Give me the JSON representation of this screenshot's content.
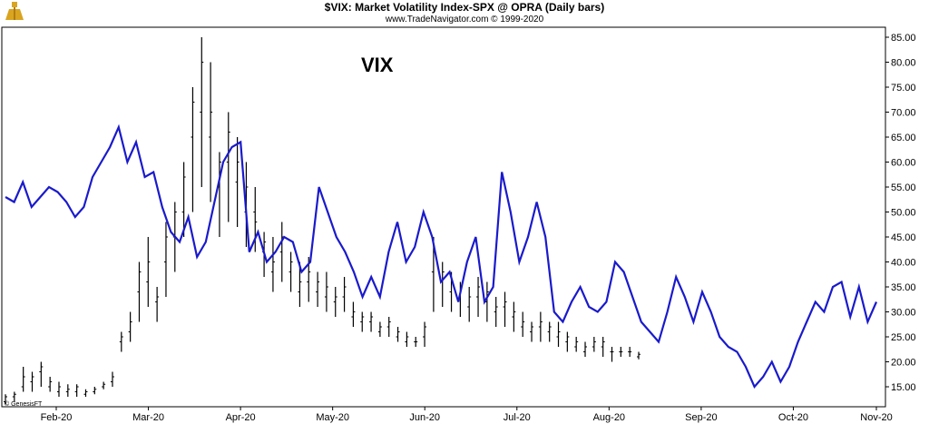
{
  "header": {
    "title": "$VIX:  Market Volatility Index-SPX @ OPRA  (Daily bars)",
    "subtitle": "www.TradeNavigator.com © 1999-2020"
  },
  "annotation": "VIX",
  "watermark": "© GenesisFT",
  "colors": {
    "line": "#1a1acc",
    "bars": "#000000",
    "axis": "#000000",
    "logo": "#d9a420"
  },
  "chart_data": {
    "type": "line",
    "title": "$VIX:  Market Volatility Index-SPX @ OPRA  (Daily bars)",
    "y_ticks": [
      "15.00",
      "20.00",
      "25.00",
      "30.00",
      "35.00",
      "40.00",
      "45.00",
      "50.00",
      "55.00",
      "60.00",
      "65.00",
      "70.00",
      "75.00",
      "80.00",
      "85.00"
    ],
    "x_ticks": [
      "Feb-20",
      "Mar-20",
      "Apr-20",
      "May-20",
      "Jun-20",
      "Jul-20",
      "Aug-20",
      "Sep-20",
      "Oct-20",
      "Nov-20"
    ],
    "ylim": [
      11,
      87
    ],
    "xlim": [
      0,
      100
    ],
    "grid": false,
    "series": [
      {
        "type": "line",
        "x": [
          0,
          1,
          2,
          3,
          4,
          5,
          6,
          7,
          8,
          9,
          10,
          11,
          12,
          13,
          14,
          15,
          16,
          17,
          18,
          19,
          20,
          21,
          22,
          23,
          24,
          25,
          26,
          27,
          28,
          29,
          30,
          31,
          32,
          33,
          34,
          35,
          36,
          37,
          38,
          39,
          40,
          41,
          42,
          43,
          44,
          45,
          46,
          47,
          48,
          49,
          50,
          51,
          52,
          53,
          54,
          55,
          56,
          57,
          58,
          59,
          60,
          61,
          62,
          63,
          64,
          65,
          66,
          67,
          68,
          69,
          70,
          71,
          72,
          73,
          74,
          75,
          76,
          77,
          78,
          79,
          80,
          81,
          82,
          83,
          84,
          85,
          86,
          87,
          88,
          89,
          90,
          91,
          92,
          93,
          94,
          95,
          96,
          97,
          98,
          99,
          100
        ],
        "y": [
          53,
          52,
          56,
          51,
          53,
          55,
          54,
          52,
          49,
          51,
          57,
          60,
          63,
          67,
          60,
          64,
          57,
          58,
          51,
          46,
          44,
          49,
          41,
          44,
          52,
          60,
          63,
          64,
          42,
          46,
          40,
          42,
          45,
          44,
          38,
          40,
          55,
          50,
          45,
          42,
          38,
          33,
          37,
          33,
          42,
          48,
          40,
          43,
          50,
          45,
          36,
          38,
          32,
          40,
          45,
          32,
          35,
          58,
          50,
          40,
          45,
          52,
          45,
          30,
          28,
          32,
          35,
          31,
          30,
          32,
          40,
          38,
          33,
          28,
          26,
          24,
          30,
          37,
          33,
          28,
          34,
          30,
          25,
          23,
          22,
          19,
          15,
          17,
          20,
          16,
          19,
          24,
          28,
          32,
          30,
          35,
          36,
          29,
          35,
          28,
          32
        ],
        "ydata_ref": "blue series shown without separate y axis"
      },
      {
        "type": "ohlc",
        "x": [
          0,
          1,
          2,
          3,
          4,
          5,
          6,
          7,
          8,
          9,
          10,
          11,
          12,
          13,
          14,
          15,
          16,
          17,
          18,
          19,
          20,
          21,
          22,
          23,
          24,
          25,
          26,
          27,
          28,
          29,
          30,
          31,
          32,
          33,
          34,
          35,
          36,
          37,
          38,
          39,
          40,
          41,
          42,
          43,
          44,
          45,
          46,
          47,
          48,
          49,
          50,
          51,
          52,
          53,
          54,
          55,
          56,
          57,
          58,
          59,
          60,
          61,
          62,
          63,
          64,
          65,
          66,
          67,
          68,
          69,
          70,
          71
        ],
        "high": [
          13.5,
          14,
          19,
          18,
          20,
          17,
          16,
          15.5,
          15.5,
          14.5,
          15,
          16,
          18,
          26,
          30,
          40,
          45,
          35,
          48,
          52,
          60,
          75,
          85,
          80,
          62,
          70,
          65,
          60,
          55,
          46,
          45,
          48,
          42,
          40,
          41,
          38,
          38,
          35,
          37,
          32,
          30,
          30,
          28,
          29,
          27,
          26,
          25,
          28,
          45,
          40,
          38,
          36,
          35,
          37,
          36,
          33,
          34,
          32,
          30,
          28,
          30,
          28,
          28,
          26,
          25,
          24,
          25,
          25,
          23,
          23,
          23,
          22
        ],
        "low": [
          11.5,
          12,
          14,
          14,
          15,
          14,
          13,
          13,
          13,
          13,
          13.5,
          14.5,
          15,
          22,
          24,
          28,
          31,
          28,
          33,
          38,
          45,
          50,
          55,
          52,
          45,
          48,
          47,
          43,
          42,
          37,
          34,
          36,
          34,
          31,
          32,
          31,
          30,
          29,
          30,
          27,
          26,
          26,
          25,
          25,
          24,
          23,
          23,
          23,
          30,
          31,
          30,
          29,
          28,
          29,
          28,
          27,
          27,
          26,
          25,
          24,
          24,
          24,
          23,
          22,
          22,
          21,
          22,
          21,
          20,
          21,
          21,
          20.5
        ],
        "open": [
          12,
          13,
          15,
          16,
          18,
          15,
          14,
          14,
          14,
          13.5,
          14,
          15,
          16,
          24,
          26,
          34,
          36,
          32,
          40,
          45,
          50,
          65,
          70,
          65,
          55,
          60,
          56,
          50,
          50,
          42,
          38,
          42,
          38,
          34,
          36,
          34,
          33,
          32,
          33,
          29,
          28,
          28,
          26,
          27,
          25,
          24,
          24,
          25,
          38,
          36,
          34,
          33,
          31,
          33,
          32,
          30,
          31,
          29,
          27,
          26,
          27,
          26,
          25,
          24,
          23,
          22,
          23,
          23,
          22,
          22,
          22,
          21
        ],
        "close": [
          13,
          13.5,
          17,
          17,
          19,
          16,
          15,
          14.5,
          15,
          14,
          14.5,
          15.5,
          17,
          25,
          28,
          38,
          40,
          33,
          45,
          50,
          57,
          72,
          80,
          70,
          60,
          66,
          60,
          55,
          48,
          44,
          40,
          45,
          40,
          36,
          38,
          36,
          35,
          33,
          35,
          30,
          29,
          29,
          27,
          28,
          26,
          25,
          24,
          27,
          42,
          38,
          36,
          35,
          33,
          35,
          34,
          31,
          32,
          30,
          28,
          27,
          28,
          27,
          26,
          25,
          24,
          23,
          24,
          24,
          22,
          22,
          22,
          21.5
        ]
      }
    ]
  }
}
